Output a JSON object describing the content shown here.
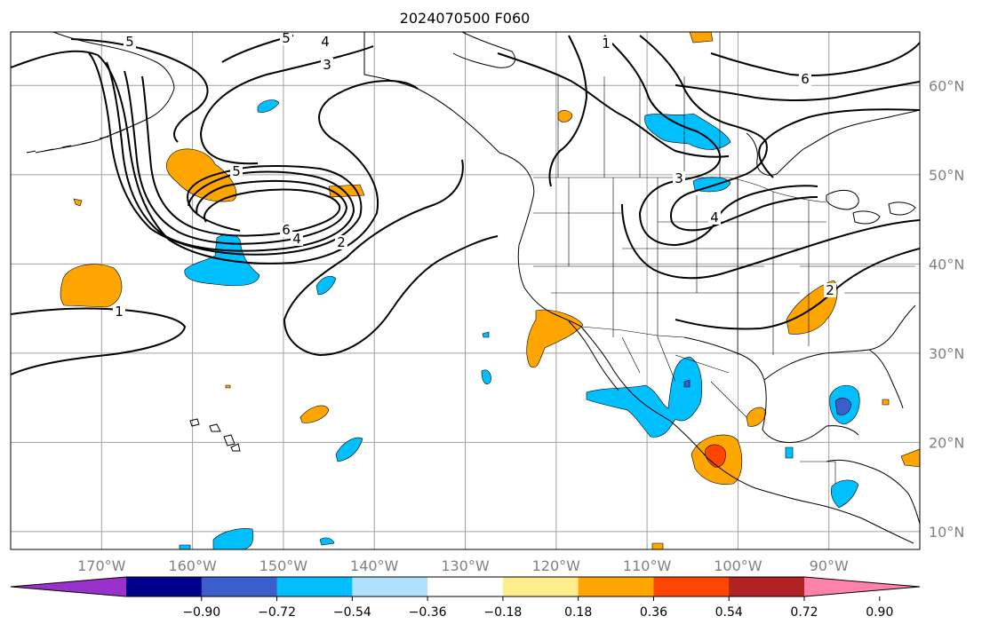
{
  "title": "2024070500 F060",
  "map": {
    "lon_range": [
      -180,
      -80
    ],
    "lat_range": [
      8,
      66
    ],
    "gridlines": true,
    "lat_labels": [
      "60°N",
      "50°N",
      "40°N",
      "30°N",
      "20°N",
      "10°N"
    ],
    "lon_labels": [
      "170°W",
      "160°W",
      "150°W",
      "140°W",
      "130°W",
      "120°W",
      "110°W",
      "100°W",
      "90°W"
    ],
    "contour_labels": [
      "5",
      "4",
      "5",
      "3",
      "1",
      "6",
      "5",
      "6",
      "4",
      "2",
      "1",
      "3",
      "4",
      "2"
    ],
    "colors": {
      "land_line": "#000000",
      "grid": "#a0a0a0",
      "contour": "#000000"
    }
  },
  "colorbar": {
    "ticks": [
      "−0.90",
      "−0.72",
      "−0.54",
      "−0.36",
      "−0.18",
      "0.18",
      "0.36",
      "0.54",
      "0.72",
      "0.90"
    ],
    "colors": [
      "#9932cc",
      "#00008b",
      "#3a5fcd",
      "#00bfff",
      "#b0e2ff",
      "#ffffff",
      "#ffec8b",
      "#ffa500",
      "#ff4500",
      "#b22222",
      "#ff82ab"
    ],
    "extend": "both"
  }
}
